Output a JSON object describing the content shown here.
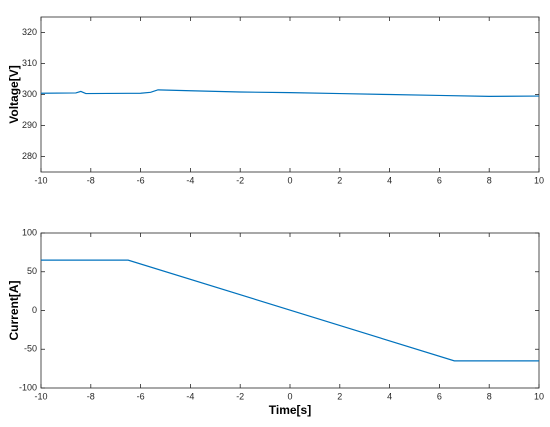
{
  "chart_data": [
    {
      "type": "line",
      "ylabel": "Voltage[V]",
      "color": "#0072bd",
      "x": [
        -10,
        -8.6,
        -8.4,
        -8.2,
        -6,
        -5.6,
        -5.3,
        -4,
        -2,
        0,
        2,
        4,
        6,
        8,
        10
      ],
      "values": [
        300.4,
        300.5,
        301.0,
        300.3,
        300.4,
        300.7,
        301.5,
        301.2,
        300.8,
        300.6,
        300.3,
        300.0,
        299.7,
        299.4,
        299.5
      ],
      "xlim": [
        -10,
        10
      ],
      "xticks": [
        -10,
        -8,
        -6,
        -4,
        -2,
        0,
        2,
        4,
        6,
        8,
        10
      ],
      "ylim": [
        275,
        325
      ],
      "yticks": [
        280,
        290,
        300,
        310,
        320
      ]
    },
    {
      "type": "line",
      "ylabel": "Current[A]",
      "xlabel": "Time[s]",
      "color": "#0072bd",
      "x": [
        -10,
        -6.5,
        6.6,
        10
      ],
      "values": [
        65,
        65,
        -65,
        -65
      ],
      "xlim": [
        -10,
        10
      ],
      "xticks": [
        -10,
        -8,
        -6,
        -4,
        -2,
        0,
        2,
        4,
        6,
        8,
        10
      ],
      "ylim": [
        -100,
        100
      ],
      "yticks": [
        -100,
        -50,
        0,
        50,
        100
      ]
    }
  ]
}
